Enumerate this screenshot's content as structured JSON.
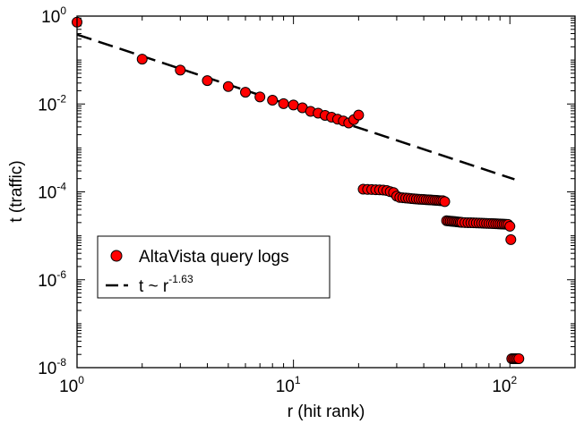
{
  "chart_data": {
    "type": "scatter",
    "xscale": "log",
    "yscale": "log",
    "xlabel": "r (hit rank)",
    "ylabel": "t (traffic)",
    "xlim": [
      1,
      200
    ],
    "ylim": [
      1e-08,
      1
    ],
    "x_ticks": [
      {
        "value": 1,
        "base": "10",
        "exp": "0"
      },
      {
        "value": 10,
        "base": "10",
        "exp": "1"
      },
      {
        "value": 100,
        "base": "10",
        "exp": "2"
      }
    ],
    "y_ticks": [
      {
        "value": 1,
        "base": "10",
        "exp": "0"
      },
      {
        "value": 0.01,
        "base": "10",
        "exp": "-2"
      },
      {
        "value": 0.0001,
        "base": "10",
        "exp": "-4"
      },
      {
        "value": 1e-06,
        "base": "10",
        "exp": "-6"
      },
      {
        "value": 1e-08,
        "base": "10",
        "exp": "-8"
      }
    ],
    "legend": {
      "placement": "lower-left",
      "entries": [
        {
          "marker": "circle",
          "base": "AltaVista query logs",
          "exp": ""
        },
        {
          "marker": "dashed-line",
          "base": "t ~ r",
          "exp": "-1.63"
        }
      ]
    },
    "colors": {
      "marker_fill": "#ff0000",
      "marker_edge": "#000000",
      "fit_line": "#000000"
    },
    "fit": {
      "name": "t ~ r^-1.63",
      "coefficient": 0.38,
      "exponent": -1.63,
      "x_range": [
        1,
        105
      ]
    },
    "series": [
      {
        "name": "AltaVista query logs",
        "points": [
          [
            1,
            0.73
          ],
          [
            2,
            0.105
          ],
          [
            3,
            0.059
          ],
          [
            4,
            0.034
          ],
          [
            5,
            0.025
          ],
          [
            6,
            0.0185
          ],
          [
            7,
            0.0145
          ],
          [
            8,
            0.0122
          ],
          [
            9,
            0.0102
          ],
          [
            10,
            0.0095
          ],
          [
            11,
            0.0082
          ],
          [
            12,
            0.0068
          ],
          [
            13,
            0.0062
          ],
          [
            14,
            0.0055
          ],
          [
            15,
            0.005
          ],
          [
            16,
            0.0045
          ],
          [
            17,
            0.0041
          ],
          [
            18,
            0.0037
          ],
          [
            19,
            0.0044
          ],
          [
            20,
            0.0056
          ],
          [
            21,
            0.000115
          ],
          [
            22,
            0.000114
          ],
          [
            23,
            0.000113
          ],
          [
            24,
            0.000112
          ],
          [
            25,
            0.000111
          ],
          [
            26,
            0.00011
          ],
          [
            27,
            0.000107
          ],
          [
            28,
            0.000101
          ],
          [
            29,
            9.65e-05
          ],
          [
            30,
            8e-05
          ],
          [
            31,
            7.45e-05
          ],
          [
            32,
            7.35e-05
          ],
          [
            33,
            7.25e-05
          ],
          [
            34,
            7.15e-05
          ],
          [
            35,
            7.05e-05
          ],
          [
            36,
            6.95e-05
          ],
          [
            37,
            6.88e-05
          ],
          [
            38,
            6.8e-05
          ],
          [
            39,
            6.75e-05
          ],
          [
            40,
            6.7e-05
          ],
          [
            41,
            6.65e-05
          ],
          [
            42,
            6.6e-05
          ],
          [
            43,
            6.55e-05
          ],
          [
            44,
            6.5e-05
          ],
          [
            45,
            6.45e-05
          ],
          [
            46,
            6.4e-05
          ],
          [
            47,
            6.35e-05
          ],
          [
            48,
            6.3e-05
          ],
          [
            49,
            6.3e-05
          ],
          [
            50,
            6e-05
          ],
          [
            51,
            2.2e-05
          ],
          [
            52,
            2.18e-05
          ],
          [
            53,
            2.16e-05
          ],
          [
            54,
            2.14e-05
          ],
          [
            55,
            2.12e-05
          ],
          [
            56,
            2.1e-05
          ],
          [
            57,
            2.08e-05
          ],
          [
            58,
            2.06e-05
          ],
          [
            59,
            2.04e-05
          ],
          [
            60,
            2.02e-05
          ],
          [
            62,
            2e-05
          ],
          [
            64,
            1.99e-05
          ],
          [
            66,
            1.98e-05
          ],
          [
            68,
            1.97e-05
          ],
          [
            70,
            1.96e-05
          ],
          [
            72,
            1.95e-05
          ],
          [
            74,
            1.94e-05
          ],
          [
            76,
            1.93e-05
          ],
          [
            78,
            1.92e-05
          ],
          [
            80,
            1.91e-05
          ],
          [
            82,
            1.9e-05
          ],
          [
            84,
            1.89e-05
          ],
          [
            86,
            1.88e-05
          ],
          [
            88,
            1.87e-05
          ],
          [
            90,
            1.86e-05
          ],
          [
            92,
            1.85e-05
          ],
          [
            94,
            1.84e-05
          ],
          [
            96,
            1.83e-05
          ],
          [
            98,
            1.82e-05
          ],
          [
            100,
            1.65e-05
          ],
          [
            101,
            8.2e-06
          ],
          [
            102,
            1.6e-08
          ],
          [
            104,
            1.6e-08
          ],
          [
            106,
            1.6e-08
          ],
          [
            108,
            1.6e-08
          ],
          [
            110,
            1.6e-08
          ]
        ]
      }
    ]
  }
}
